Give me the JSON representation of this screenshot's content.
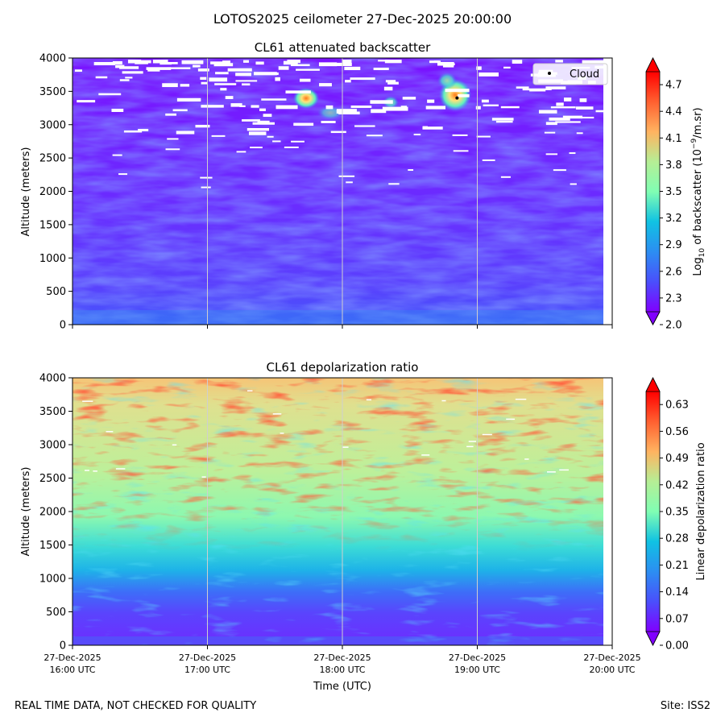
{
  "figure": {
    "suptitle": "LOTOS2025 ceilometer 27-Dec-2025 20:00:00",
    "footer_left": "REAL TIME DATA, NOT CHECKED FOR QUALITY",
    "footer_right": "Site: ISS2"
  },
  "chart_data": [
    {
      "type": "heatmap",
      "title": "CL61 attenuated backscatter",
      "xlabel": "",
      "ylabel": "Altitude (meters)",
      "ylim": [
        0,
        4000
      ],
      "y_ticks": [
        0,
        500,
        1000,
        1500,
        2000,
        2500,
        3000,
        3500,
        4000
      ],
      "x_ticks": [
        "27-Dec-2025\n16:00 UTC",
        "27-Dec-2025\n17:00 UTC",
        "27-Dec-2025\n18:00 UTC",
        "27-Dec-2025\n19:00 UTC",
        "27-Dec-2025\n20:00 UTC"
      ],
      "x_tick_labels_visible": false,
      "vertical_gridlines": true,
      "colormap": "rainbow",
      "colorbar": {
        "label_prefix": "Log",
        "label_sub": "10",
        "label_mid": " of backscatter (10",
        "label_sup": "−9",
        "label_suffix": "/m.sr)",
        "range": [
          2.0,
          5.0
        ],
        "ticks": [
          "2.0",
          "2.3",
          "2.6",
          "2.9",
          "3.2",
          "3.5",
          "3.8",
          "4.1",
          "4.4",
          "4.7"
        ],
        "extend": "both"
      },
      "legend": {
        "entries": [
          {
            "label": "Cloud",
            "marker": "point",
            "color": "#000000"
          }
        ],
        "placement": "upper-right"
      },
      "cloud_points": [
        {
          "time": "27-Dec-2025 18:51 UTC",
          "altitude": 3400
        }
      ]
    },
    {
      "type": "heatmap",
      "title": "CL61 depolarization ratio",
      "xlabel": "Time (UTC)",
      "ylabel": "Altitude (meters)",
      "ylim": [
        0,
        4000
      ],
      "y_ticks": [
        0,
        500,
        1000,
        1500,
        2000,
        2500,
        3000,
        3500,
        4000
      ],
      "x_ticks": [
        {
          "line1": "27-Dec-2025",
          "line2": "16:00 UTC"
        },
        {
          "line1": "27-Dec-2025",
          "line2": "17:00 UTC"
        },
        {
          "line1": "27-Dec-2025",
          "line2": "18:00 UTC"
        },
        {
          "line1": "27-Dec-2025",
          "line2": "19:00 UTC"
        },
        {
          "line1": "27-Dec-2025",
          "line2": "20:00 UTC"
        }
      ],
      "vertical_gridlines": true,
      "colormap": "rainbow",
      "colorbar": {
        "label": "Linear depolarization ratio",
        "range": [
          0.0,
          0.7
        ],
        "ticks": [
          "0.00",
          "0.07",
          "0.14",
          "0.21",
          "0.28",
          "0.35",
          "0.42",
          "0.49",
          "0.56",
          "0.63"
        ],
        "extend": "both"
      }
    }
  ]
}
